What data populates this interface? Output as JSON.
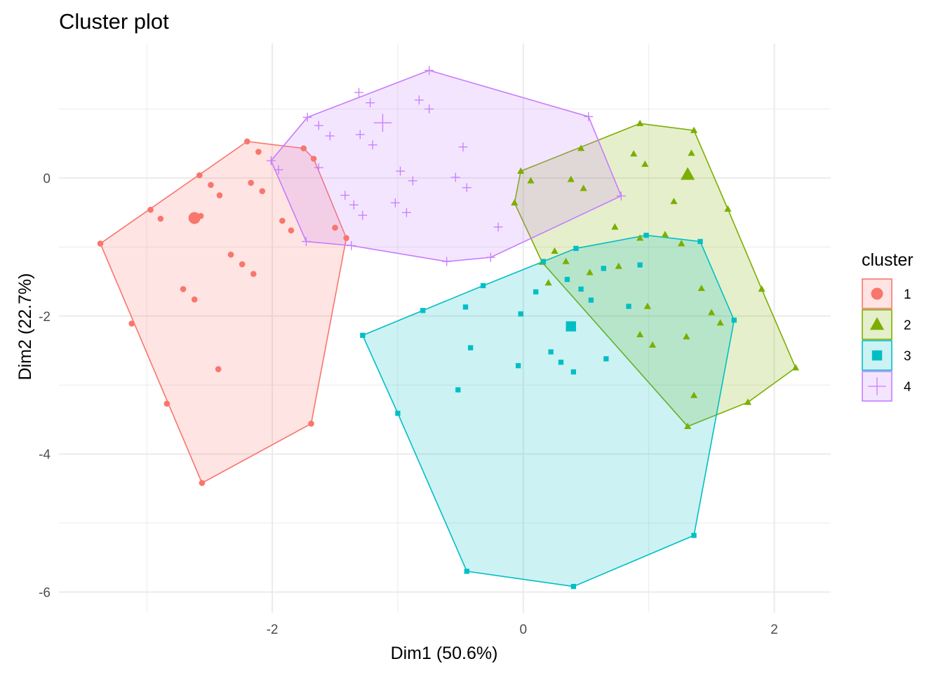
{
  "chart_data": {
    "type": "scatter",
    "title": "Cluster plot",
    "xlabel": "Dim1 (50.6%)",
    "ylabel": "Dim2 (22.7%)",
    "xlim": [
      -3.7,
      2.45
    ],
    "ylim": [
      -6.3,
      1.95
    ],
    "x_ticks": [
      -2,
      0,
      2
    ],
    "x_tick_labels": [
      "-2",
      "0",
      "2"
    ],
    "y_ticks": [
      -6,
      -4,
      -2,
      0
    ],
    "y_tick_labels": [
      "-6",
      "-4",
      "-2",
      "0"
    ],
    "grid": true,
    "legend": {
      "title": "cluster",
      "placement": "right",
      "entries": [
        "1",
        "2",
        "3",
        "4"
      ]
    },
    "series": [
      {
        "name": "1",
        "color": "#F8766D",
        "shape": "circle",
        "centroid": [
          -2.62,
          -0.58
        ],
        "hull": [
          [
            -2.2,
            0.53
          ],
          [
            -1.75,
            0.43
          ],
          [
            -1.67,
            0.28
          ],
          [
            -1.41,
            -0.87
          ],
          [
            -1.69,
            -3.56
          ],
          [
            -2.56,
            -4.42
          ],
          [
            -3.37,
            -0.95
          ]
        ],
        "points": [
          [
            -2.2,
            0.53
          ],
          [
            -1.75,
            0.43
          ],
          [
            -1.67,
            0.28
          ],
          [
            -1.41,
            -0.87
          ],
          [
            -1.69,
            -3.56
          ],
          [
            -2.56,
            -4.42
          ],
          [
            -3.37,
            -0.95
          ],
          [
            -2.11,
            0.38
          ],
          [
            -2.58,
            0.04
          ],
          [
            -2.49,
            -0.1
          ],
          [
            -2.42,
            -0.25
          ],
          [
            -2.17,
            -0.07
          ],
          [
            -2.08,
            -0.19
          ],
          [
            -2.97,
            -0.46
          ],
          [
            -2.89,
            -0.59
          ],
          [
            -2.57,
            -0.55
          ],
          [
            -1.92,
            -0.62
          ],
          [
            -1.85,
            -0.76
          ],
          [
            -1.5,
            -0.72
          ],
          [
            -2.33,
            -1.11
          ],
          [
            -2.24,
            -1.25
          ],
          [
            -2.15,
            -1.39
          ],
          [
            -2.71,
            -1.61
          ],
          [
            -2.62,
            -1.76
          ],
          [
            -3.12,
            -2.11
          ],
          [
            -2.43,
            -2.77
          ],
          [
            -2.84,
            -3.27
          ]
        ]
      },
      {
        "name": "2",
        "color": "#7CAE00",
        "shape": "triangle",
        "centroid": [
          1.31,
          0.05
        ],
        "hull": [
          [
            0.93,
            0.79
          ],
          [
            1.36,
            0.69
          ],
          [
            1.63,
            -0.45
          ],
          [
            1.9,
            -1.61
          ],
          [
            2.17,
            -2.75
          ],
          [
            1.79,
            -3.25
          ],
          [
            1.31,
            -3.6
          ],
          [
            0.15,
            -1.22
          ],
          [
            -0.07,
            -0.36
          ],
          [
            -0.02,
            0.1
          ]
        ],
        "points": [
          [
            0.93,
            0.79
          ],
          [
            1.36,
            0.69
          ],
          [
            1.63,
            -0.45
          ],
          [
            1.9,
            -1.61
          ],
          [
            2.17,
            -2.75
          ],
          [
            1.79,
            -3.25
          ],
          [
            1.31,
            -3.6
          ],
          [
            0.15,
            -1.22
          ],
          [
            -0.07,
            -0.36
          ],
          [
            -0.02,
            0.1
          ],
          [
            0.06,
            -0.04
          ],
          [
            0.38,
            -0.02
          ],
          [
            0.46,
            0.43
          ],
          [
            0.48,
            -0.15
          ],
          [
            0.88,
            0.35
          ],
          [
            0.97,
            0.2
          ],
          [
            1.2,
            -0.34
          ],
          [
            1.34,
            0.36
          ],
          [
            0.73,
            -0.71
          ],
          [
            0.93,
            -0.87
          ],
          [
            1.13,
            -0.82
          ],
          [
            1.26,
            -0.95
          ],
          [
            0.25,
            -1.06
          ],
          [
            0.34,
            -1.21
          ],
          [
            0.53,
            -1.37
          ],
          [
            0.76,
            -1.28
          ],
          [
            0.2,
            -1.52
          ],
          [
            0.99,
            -1.86
          ],
          [
            1.42,
            -1.6
          ],
          [
            1.5,
            -1.95
          ],
          [
            1.57,
            -2.1
          ],
          [
            0.93,
            -2.27
          ],
          [
            1.03,
            -2.42
          ],
          [
            1.3,
            -2.3
          ],
          [
            1.36,
            -3.15
          ]
        ]
      },
      {
        "name": "3",
        "color": "#00BFC4",
        "shape": "square",
        "centroid": [
          0.38,
          -2.15
        ],
        "hull": [
          [
            -1.28,
            -2.28
          ],
          [
            -0.8,
            -1.92
          ],
          [
            -0.32,
            -1.56
          ],
          [
            0.42,
            -1.02
          ],
          [
            0.98,
            -0.83
          ],
          [
            1.41,
            -0.92
          ],
          [
            1.68,
            -2.06
          ],
          [
            1.36,
            -5.18
          ],
          [
            0.4,
            -5.92
          ],
          [
            -0.45,
            -5.7
          ],
          [
            -1.0,
            -3.41
          ]
        ],
        "points": [
          [
            -1.28,
            -2.28
          ],
          [
            -0.8,
            -1.92
          ],
          [
            -0.32,
            -1.56
          ],
          [
            0.42,
            -1.02
          ],
          [
            0.98,
            -0.83
          ],
          [
            1.41,
            -0.92
          ],
          [
            1.68,
            -2.06
          ],
          [
            1.36,
            -5.18
          ],
          [
            0.4,
            -5.92
          ],
          [
            -0.45,
            -5.7
          ],
          [
            -1.0,
            -3.41
          ],
          [
            0.16,
            -1.21
          ],
          [
            0.64,
            -1.31
          ],
          [
            0.93,
            -1.26
          ],
          [
            0.1,
            -1.65
          ],
          [
            0.35,
            -1.47
          ],
          [
            0.46,
            -1.61
          ],
          [
            0.54,
            -1.77
          ],
          [
            0.84,
            -1.86
          ],
          [
            -0.46,
            -1.87
          ],
          [
            -0.02,
            -1.97
          ],
          [
            -0.42,
            -2.46
          ],
          [
            0.22,
            -2.52
          ],
          [
            0.3,
            -2.67
          ],
          [
            0.4,
            -2.81
          ],
          [
            0.66,
            -2.62
          ],
          [
            -0.04,
            -2.72
          ],
          [
            -0.52,
            -3.07
          ]
        ]
      },
      {
        "name": "4",
        "color": "#C77CFF",
        "shape": "cross",
        "centroid": [
          -1.12,
          0.8
        ],
        "hull": [
          [
            -0.75,
            1.56
          ],
          [
            0.52,
            0.89
          ],
          [
            0.78,
            -0.26
          ],
          [
            -0.26,
            -1.15
          ],
          [
            -0.61,
            -1.21
          ],
          [
            -1.37,
            -0.98
          ],
          [
            -1.73,
            -0.92
          ],
          [
            -2.01,
            0.25
          ],
          [
            -1.72,
            0.88
          ]
        ],
        "points": [
          [
            -0.75,
            1.56
          ],
          [
            0.52,
            0.89
          ],
          [
            0.78,
            -0.26
          ],
          [
            -0.26,
            -1.15
          ],
          [
            -0.61,
            -1.21
          ],
          [
            -1.37,
            -0.98
          ],
          [
            -1.73,
            -0.92
          ],
          [
            -2.01,
            0.25
          ],
          [
            -1.72,
            0.88
          ],
          [
            -1.31,
            1.24
          ],
          [
            -1.22,
            1.09
          ],
          [
            -0.83,
            1.13
          ],
          [
            -0.75,
            1.0
          ],
          [
            -1.63,
            0.76
          ],
          [
            -1.54,
            0.61
          ],
          [
            -1.3,
            0.63
          ],
          [
            -1.2,
            0.48
          ],
          [
            -1.95,
            0.12
          ],
          [
            -1.63,
            0.15
          ],
          [
            -0.48,
            0.45
          ],
          [
            -0.98,
            0.1
          ],
          [
            -0.88,
            -0.04
          ],
          [
            -0.54,
            0.01
          ],
          [
            -0.45,
            -0.14
          ],
          [
            -1.42,
            -0.25
          ],
          [
            -1.35,
            -0.39
          ],
          [
            -1.28,
            -0.54
          ],
          [
            -1.02,
            -0.36
          ],
          [
            -0.93,
            -0.5
          ],
          [
            -0.2,
            -0.71
          ]
        ]
      }
    ]
  }
}
